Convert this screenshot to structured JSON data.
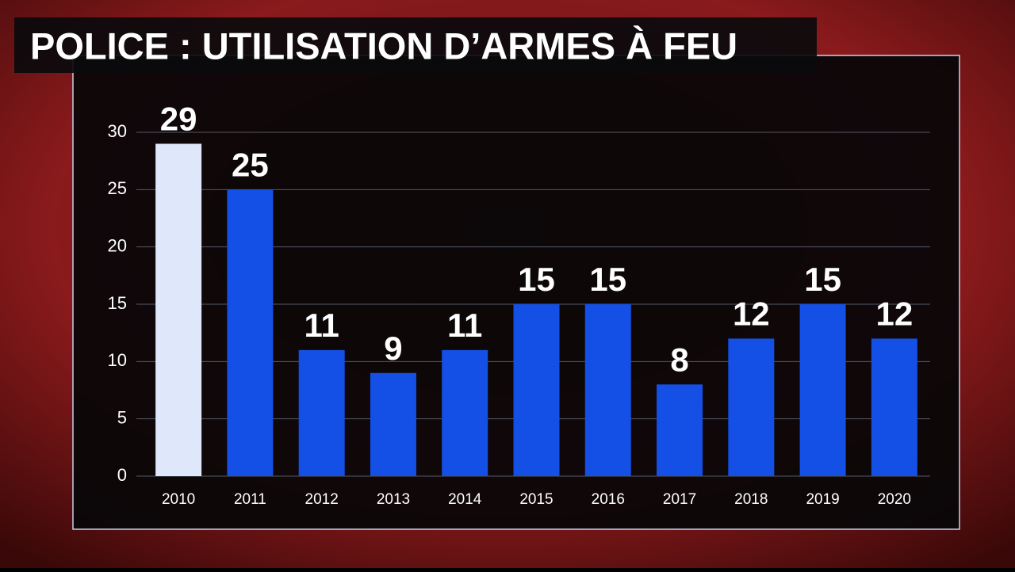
{
  "chart_data": {
    "type": "bar",
    "title": "POLICE : UTILISATION D’ARMES À FEU",
    "categories": [
      "2010",
      "2011",
      "2012",
      "2013",
      "2014",
      "2015",
      "2016",
      "2017",
      "2018",
      "2019",
      "2020"
    ],
    "values": [
      29,
      25,
      11,
      9,
      11,
      15,
      15,
      8,
      12,
      15,
      12
    ],
    "colors": [
      "#dfe7fb",
      "#1450e6",
      "#1450e6",
      "#1450e6",
      "#1450e6",
      "#1450e6",
      "#1450e6",
      "#1450e6",
      "#1450e6",
      "#1450e6",
      "#1450e6"
    ],
    "ylim": [
      0,
      30
    ],
    "yticks": [
      0,
      5,
      10,
      15,
      20,
      25,
      30
    ],
    "grid": true
  }
}
